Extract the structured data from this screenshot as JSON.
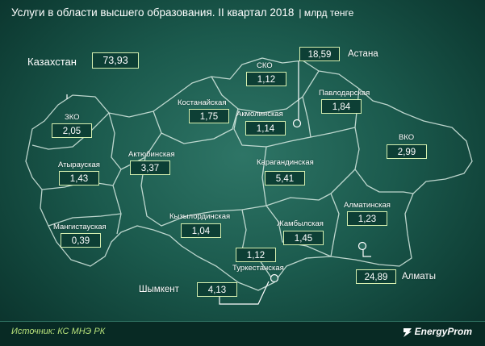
{
  "title": "Услуги в области высшего образования. II квартал 2018",
  "unit": "| млрд тенге",
  "kazakhstan": {
    "label": "Казахстан",
    "value": "73,93"
  },
  "regions": {
    "sko": {
      "label": "СКО",
      "value": "1,12"
    },
    "astana": {
      "label": "Астана",
      "value": "18,59"
    },
    "kostanay": {
      "label": "Костанайская",
      "value": "1,75"
    },
    "akmola": {
      "label": "Акмолинская",
      "value": "1,14"
    },
    "pavlodar": {
      "label": "Павлодарская",
      "value": "1,84"
    },
    "zko": {
      "label": "ЗКО",
      "value": "2,05"
    },
    "aktobe": {
      "label": "Актюбинская",
      "value": "3,37"
    },
    "vko": {
      "label": "ВКО",
      "value": "2,99"
    },
    "atyrau": {
      "label": "Атырауская",
      "value": "1,43"
    },
    "karaganda": {
      "label": "Карагандинская",
      "value": "5,41"
    },
    "almaty_obl": {
      "label": "Алматинская",
      "value": "1,23"
    },
    "kyzylorda": {
      "label": "Кызылординская",
      "value": "1,04"
    },
    "zhambyl": {
      "label": "Жамбылская",
      "value": "1,45"
    },
    "mangystau": {
      "label": "Мангистауская",
      "value": "0,39"
    },
    "turkestan": {
      "label": "Туркестанская",
      "value": "1,12"
    },
    "shymkent": {
      "label": "Шымкент",
      "value": "4,13"
    },
    "almaty": {
      "label": "Алматы",
      "value": "24,89"
    }
  },
  "source": "Источник: КС МНЭ РК",
  "logo": "EnergyProm",
  "colors": {
    "box_border": "#d6f0b0",
    "box_fill": "#0d3f35",
    "source_text": "#b6e07a",
    "map_line": "#d9ece4"
  }
}
